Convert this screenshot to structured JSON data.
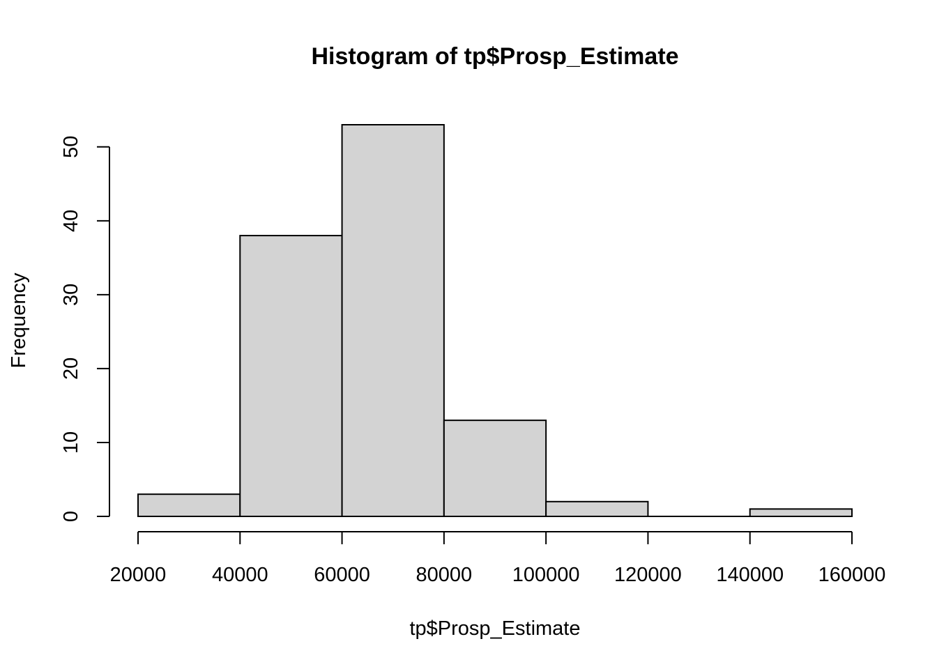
{
  "chart_data": {
    "type": "bar",
    "title": "Histogram of tp$Prosp_Estimate",
    "xlabel": "tp$Prosp_Estimate",
    "ylabel": "Frequency",
    "bins": [
      {
        "start": 20000,
        "end": 40000,
        "count": 3
      },
      {
        "start": 40000,
        "end": 60000,
        "count": 38
      },
      {
        "start": 60000,
        "end": 80000,
        "count": 53
      },
      {
        "start": 80000,
        "end": 100000,
        "count": 13
      },
      {
        "start": 100000,
        "end": 120000,
        "count": 2
      },
      {
        "start": 120000,
        "end": 140000,
        "count": 0
      },
      {
        "start": 140000,
        "end": 160000,
        "count": 1
      }
    ],
    "x_ticks": [
      20000,
      40000,
      60000,
      80000,
      100000,
      120000,
      140000,
      160000
    ],
    "x_tick_labels": [
      "20000",
      "40000",
      "60000",
      "80000",
      "100000",
      "120000",
      "140000",
      "160000"
    ],
    "y_ticks": [
      0,
      10,
      20,
      30,
      40,
      50
    ],
    "y_tick_labels": [
      "0",
      "10",
      "20",
      "30",
      "40",
      "50"
    ],
    "xlim": [
      20000,
      160000
    ],
    "ylim": [
      0,
      53
    ],
    "grid": false,
    "colors": {
      "bar_fill": "#D3D3D3",
      "bar_stroke": "#000000",
      "background": "#FFFFFF"
    }
  }
}
